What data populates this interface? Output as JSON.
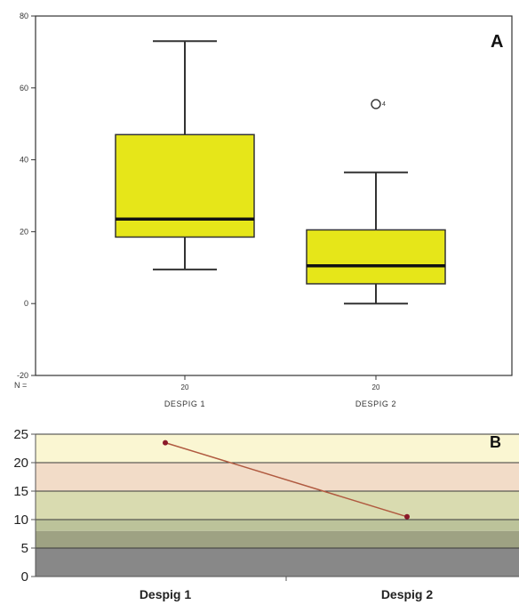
{
  "chart_data": [
    {
      "panel_label": "A",
      "type": "box",
      "ylim": [
        -20,
        80
      ],
      "y_ticks": [
        -20,
        0,
        20,
        40,
        60,
        80
      ],
      "n_label": "N =",
      "categories": [
        "DESPIG 1",
        "DESPIG 2"
      ],
      "n_values": [
        "20",
        "20"
      ],
      "boxes": [
        {
          "category": "DESPIG 1",
          "whisker_low": 9.5,
          "q1": 18.5,
          "median": 23.5,
          "q3": 47,
          "whisker_high": 73
        },
        {
          "category": "DESPIG 2",
          "whisker_low": 0,
          "q1": 5.5,
          "median": 10.5,
          "q3": 20.5,
          "whisker_high": 36.5
        }
      ],
      "outliers": [
        {
          "category": "DESPIG 2",
          "value": 55.5,
          "label": "4"
        }
      ],
      "colors": {
        "box_fill": "#e6e619",
        "box_stroke": "#333333",
        "median": "#111111"
      }
    },
    {
      "panel_label": "B",
      "type": "line",
      "ylim": [
        0,
        25
      ],
      "y_ticks": [
        0,
        5,
        10,
        15,
        20,
        25
      ],
      "categories": [
        "Despig 1",
        "Despig 2"
      ],
      "series": [
        {
          "values": [
            23.5,
            10.5
          ],
          "color": "#b05a40",
          "marker_color": "#8b1a2a"
        }
      ],
      "background_bands": [
        {
          "from": 20,
          "to": 25,
          "color": "#faf6d2"
        },
        {
          "from": 15,
          "to": 20,
          "color": "#f2dcc8"
        },
        {
          "from": 10,
          "to": 15,
          "color": "#d9dbb0"
        },
        {
          "from": 8,
          "to": 10,
          "color": "#bcc39a"
        },
        {
          "from": 5,
          "to": 8,
          "color": "#9ea283"
        },
        {
          "from": 0,
          "to": 5,
          "color": "#888888"
        }
      ],
      "grid": true
    }
  ]
}
